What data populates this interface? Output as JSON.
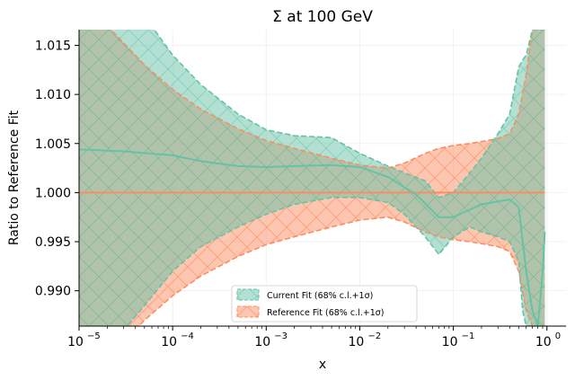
{
  "chart_data": {
    "type": "area",
    "title": "Σ at 100 GeV",
    "xlabel": "x",
    "ylabel": "Ratio to Reference Fit",
    "xscale": "log",
    "xlim": [
      1e-05,
      1.6
    ],
    "ylim": [
      0.9864,
      1.0166
    ],
    "grid": false,
    "legend_position": "bottom-center",
    "x_ticks": [
      {
        "value": 1e-05,
        "base": "10",
        "exp": "−5"
      },
      {
        "value": 0.0001,
        "base": "10",
        "exp": "−4"
      },
      {
        "value": 0.001,
        "base": "10",
        "exp": "−3"
      },
      {
        "value": 0.01,
        "base": "10",
        "exp": "−2"
      },
      {
        "value": 0.1,
        "base": "10",
        "exp": "−1"
      },
      {
        "value": 1,
        "base": "10",
        "exp": "0"
      }
    ],
    "y_ticks": [
      {
        "value": 0.99,
        "label": "0.990"
      },
      {
        "value": 0.995,
        "label": "0.995"
      },
      {
        "value": 1.0,
        "label": "1.000"
      },
      {
        "value": 1.005,
        "label": "1.005"
      },
      {
        "value": 1.01,
        "label": "1.010"
      },
      {
        "value": 1.015,
        "label": "1.015"
      }
    ],
    "series": [
      {
        "name": "Current Fit (68% c.l.+1σ)",
        "color": "#66c2a5",
        "central": [
          [
            1e-05,
            1.0044
          ],
          [
            3e-05,
            1.0042
          ],
          [
            0.0001,
            1.0038
          ],
          [
            0.0002,
            1.0032
          ],
          [
            0.0005,
            1.0027
          ],
          [
            0.001,
            1.0026
          ],
          [
            0.002,
            1.0027
          ],
          [
            0.005,
            1.0028
          ],
          [
            0.01,
            1.0026
          ],
          [
            0.02,
            1.0016
          ],
          [
            0.04,
            0.9998
          ],
          [
            0.07,
            0.9975
          ],
          [
            0.1,
            0.9975
          ],
          [
            0.2,
            0.9988
          ],
          [
            0.3,
            0.9991
          ],
          [
            0.4,
            0.9993
          ],
          [
            0.5,
            0.9985
          ],
          [
            0.6,
            0.992
          ],
          [
            0.7,
            0.988
          ],
          [
            0.8,
            0.9864
          ],
          [
            0.9,
            0.992
          ],
          [
            0.95,
            0.996
          ]
        ],
        "band_upper": [
          [
            1e-05,
            1.03
          ],
          [
            2e-05,
            1.0235
          ],
          [
            5e-05,
            1.018
          ],
          [
            0.0001,
            1.014
          ],
          [
            0.0002,
            1.011
          ],
          [
            0.0005,
            1.008
          ],
          [
            0.001,
            1.0064
          ],
          [
            0.002,
            1.0058
          ],
          [
            0.005,
            1.0056
          ],
          [
            0.01,
            1.004
          ],
          [
            0.02,
            1.0027
          ],
          [
            0.03,
            1.002
          ],
          [
            0.05,
            1.0012
          ],
          [
            0.07,
            0.9995
          ],
          [
            0.1,
            1.0
          ],
          [
            0.15,
            1.002
          ],
          [
            0.2,
            1.0035
          ],
          [
            0.3,
            1.006
          ],
          [
            0.4,
            1.008
          ],
          [
            0.5,
            1.0128
          ],
          [
            0.55,
            1.0135
          ],
          [
            0.6,
            1.014
          ],
          [
            0.7,
            1.0166
          ],
          [
            0.8,
            1.0166
          ],
          [
            0.9,
            1.0166
          ],
          [
            0.95,
            1.0166
          ]
        ],
        "band_lower": [
          [
            1e-05,
            0.979
          ],
          [
            2e-05,
            0.984
          ],
          [
            5e-05,
            0.9885
          ],
          [
            0.0001,
            0.992
          ],
          [
            0.0002,
            0.9945
          ],
          [
            0.0005,
            0.9965
          ],
          [
            0.001,
            0.9978
          ],
          [
            0.002,
            0.9988
          ],
          [
            0.005,
            0.9995
          ],
          [
            0.01,
            0.9995
          ],
          [
            0.02,
            0.999
          ],
          [
            0.03,
            0.9978
          ],
          [
            0.05,
            0.9955
          ],
          [
            0.07,
            0.9937
          ],
          [
            0.1,
            0.9955
          ],
          [
            0.15,
            0.9965
          ],
          [
            0.2,
            0.996
          ],
          [
            0.3,
            0.9955
          ],
          [
            0.4,
            0.995
          ],
          [
            0.5,
            0.993
          ],
          [
            0.55,
            0.988
          ],
          [
            0.6,
            0.9864
          ],
          [
            0.7,
            0.9864
          ],
          [
            0.8,
            0.9864
          ],
          [
            0.9,
            0.9864
          ],
          [
            0.95,
            0.9864
          ]
        ]
      },
      {
        "name": "Reference Fit (68% c.l.+1σ)",
        "color": "#fc8d62",
        "central": [
          [
            1e-05,
            1.0
          ],
          [
            0.95,
            1.0
          ]
        ],
        "band_upper": [
          [
            1e-05,
            1.02
          ],
          [
            2e-05,
            1.017
          ],
          [
            5e-05,
            1.013
          ],
          [
            0.0001,
            1.0105
          ],
          [
            0.0002,
            1.0085
          ],
          [
            0.0005,
            1.0065
          ],
          [
            0.001,
            1.0053
          ],
          [
            0.002,
            1.0045
          ],
          [
            0.005,
            1.0035
          ],
          [
            0.01,
            1.0028
          ],
          [
            0.02,
            1.0025
          ],
          [
            0.03,
            1.003
          ],
          [
            0.05,
            1.004
          ],
          [
            0.07,
            1.0045
          ],
          [
            0.1,
            1.0048
          ],
          [
            0.15,
            1.005
          ],
          [
            0.2,
            1.0052
          ],
          [
            0.3,
            1.0055
          ],
          [
            0.4,
            1.006
          ],
          [
            0.5,
            1.008
          ],
          [
            0.6,
            1.012
          ],
          [
            0.7,
            1.0166
          ],
          [
            0.8,
            1.0166
          ],
          [
            0.9,
            1.0166
          ],
          [
            0.95,
            1.0166
          ]
        ],
        "band_lower": [
          [
            1e-05,
            0.98
          ],
          [
            2e-05,
            0.983
          ],
          [
            5e-05,
            0.987
          ],
          [
            0.0001,
            0.9895
          ],
          [
            0.0002,
            0.9915
          ],
          [
            0.0005,
            0.9935
          ],
          [
            0.001,
            0.9947
          ],
          [
            0.002,
            0.9955
          ],
          [
            0.005,
            0.9965
          ],
          [
            0.01,
            0.9972
          ],
          [
            0.02,
            0.9975
          ],
          [
            0.03,
            0.997
          ],
          [
            0.05,
            0.996
          ],
          [
            0.07,
            0.9955
          ],
          [
            0.1,
            0.9952
          ],
          [
            0.15,
            0.995
          ],
          [
            0.2,
            0.9948
          ],
          [
            0.3,
            0.9945
          ],
          [
            0.4,
            0.994
          ],
          [
            0.5,
            0.992
          ],
          [
            0.6,
            0.988
          ],
          [
            0.7,
            0.9864
          ],
          [
            0.8,
            0.9864
          ],
          [
            0.9,
            0.9864
          ],
          [
            0.95,
            0.9864
          ]
        ]
      }
    ],
    "reference_line": {
      "value": 1.0,
      "color": "#fc8d62"
    }
  }
}
